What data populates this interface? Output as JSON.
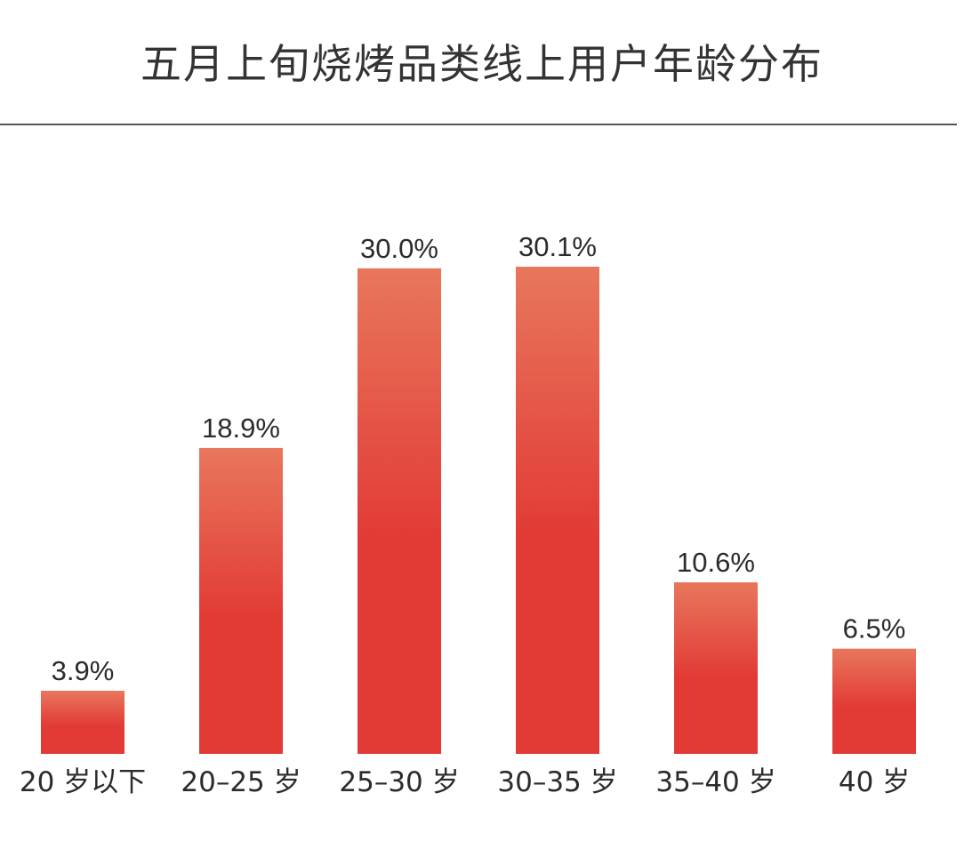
{
  "chart_data": {
    "type": "bar",
    "title": "五月上旬烧烤品类线上用户年龄分布",
    "categories": [
      "20 岁以下",
      "20–25 岁",
      "25–30 岁",
      "30–35 岁",
      "35–40 岁",
      "40 岁"
    ],
    "values": [
      3.9,
      18.9,
      30.0,
      30.1,
      10.6,
      6.5
    ],
    "value_labels": [
      "3.9%",
      "18.9%",
      "30.0%",
      "30.1%",
      "10.6%",
      "6.5%"
    ],
    "xlabel": "",
    "ylabel": "",
    "ylim": [
      0,
      30.1
    ],
    "grid": false,
    "legend": "none",
    "colors": {
      "bar_top": "#e8775c",
      "bar_bottom": "#e23b36",
      "text": "#2b2b2b"
    }
  }
}
